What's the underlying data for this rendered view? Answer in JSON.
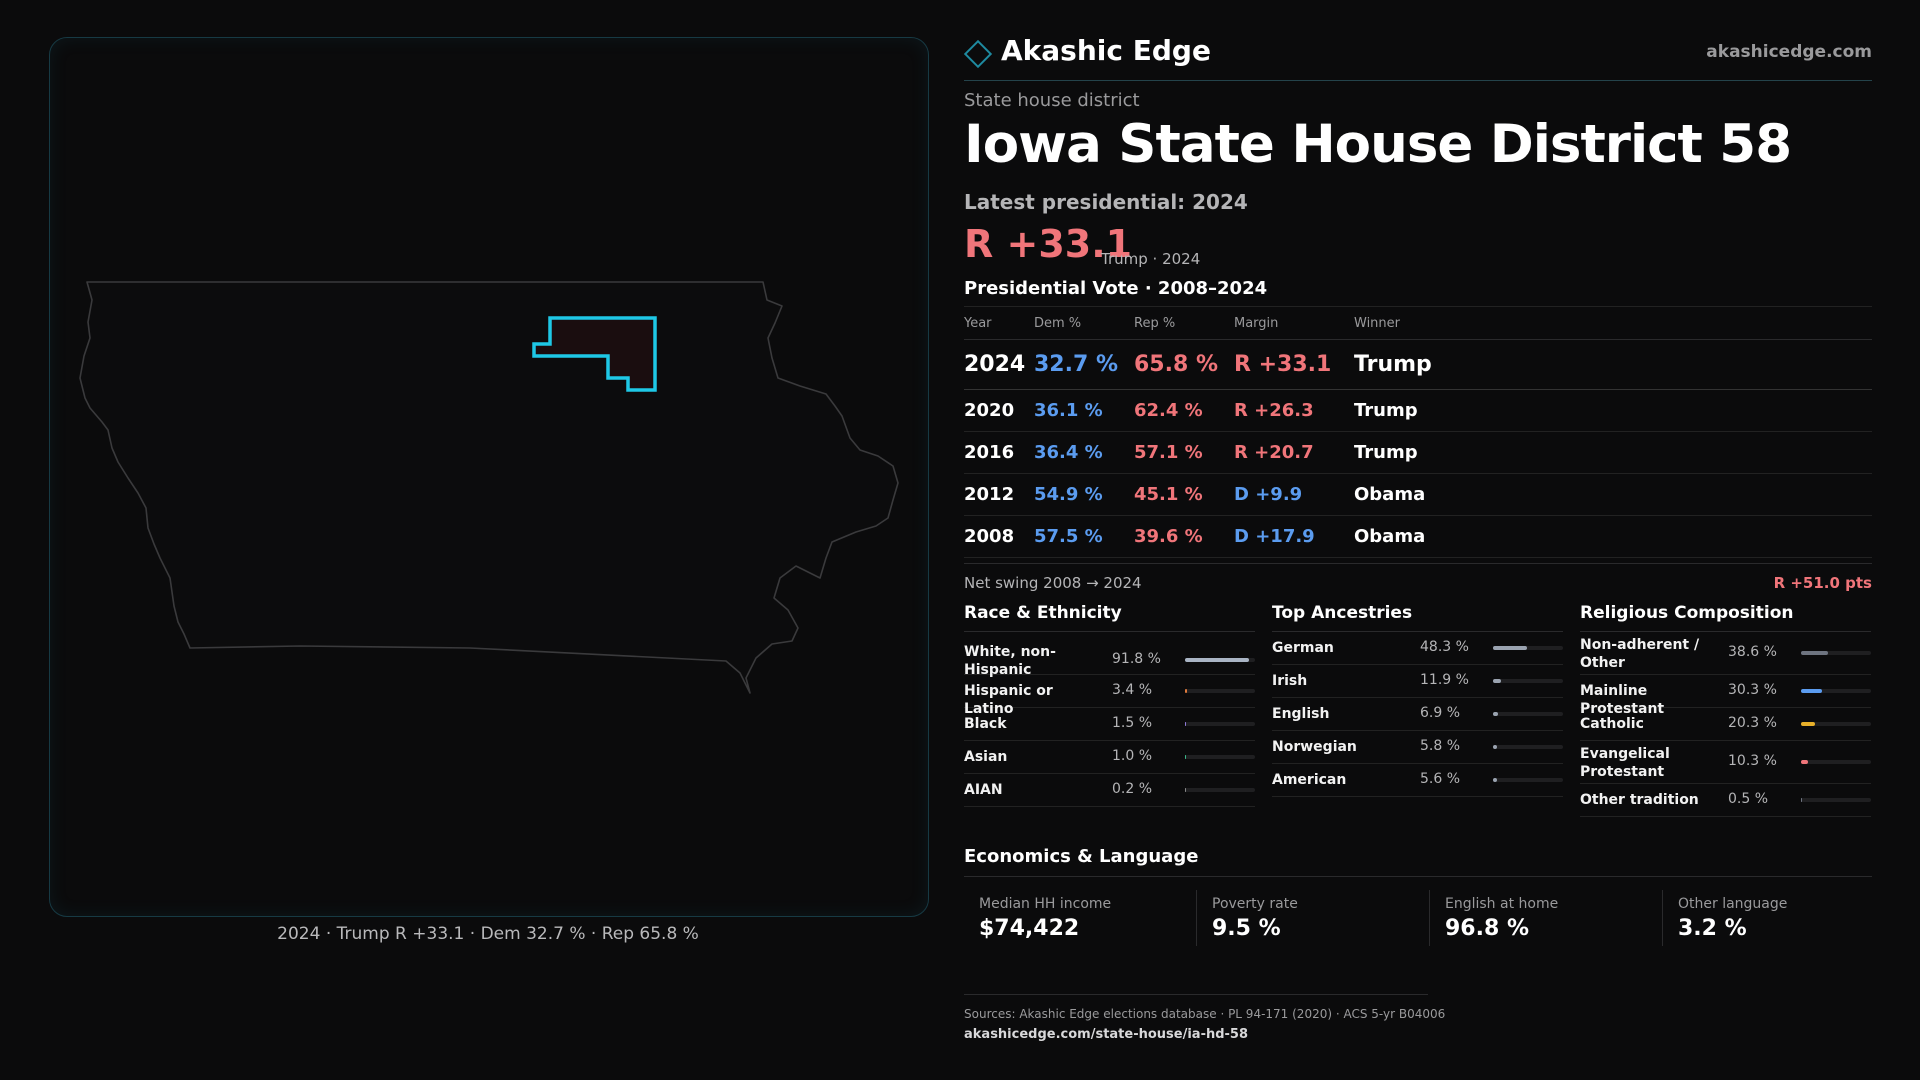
{
  "brand": {
    "name": "Akashic Edge",
    "site": "akashicedge.com"
  },
  "kicker": "State house district",
  "title": "Iowa State House District 58",
  "latest_label": "Latest presidential: 2024",
  "headline_margin": "R +33.1",
  "headline_note": "Trump · 2024",
  "map_caption": "2024 · Trump R +33.1 · Dem 32.7 % · Rep 65.8 %",
  "vote_table": {
    "title": "Presidential Vote · 2008–2024",
    "headers": [
      "Year",
      "Dem %",
      "Rep %",
      "Margin",
      "Winner"
    ],
    "rows": [
      {
        "year": "2024",
        "dem": "32.7 %",
        "rep": "65.8 %",
        "margin": "R +33.1",
        "party": "R",
        "winner": "Trump"
      },
      {
        "year": "2020",
        "dem": "36.1 %",
        "rep": "62.4 %",
        "margin": "R +26.3",
        "party": "R",
        "winner": "Trump"
      },
      {
        "year": "2016",
        "dem": "36.4 %",
        "rep": "57.1 %",
        "margin": "R +20.7",
        "party": "R",
        "winner": "Trump"
      },
      {
        "year": "2012",
        "dem": "54.9 %",
        "rep": "45.1 %",
        "margin": "D +9.9",
        "party": "D",
        "winner": "Obama"
      },
      {
        "year": "2008",
        "dem": "57.5 %",
        "rep": "39.6 %",
        "margin": "D +17.9",
        "party": "D",
        "winner": "Obama"
      }
    ]
  },
  "swing": {
    "label": "Net swing 2008 → 2024",
    "value": "R +51.0 pts"
  },
  "race": {
    "title": "Race & Ethnicity",
    "items": [
      {
        "label": "White, non-Hispanic",
        "pct": "91.8 %",
        "value": 91.8,
        "color": "#a9b4c4"
      },
      {
        "label": "Hispanic or Latino",
        "pct": "3.4 %",
        "value": 3.4,
        "color": "#e07a3c"
      },
      {
        "label": "Black",
        "pct": "1.5 %",
        "value": 1.5,
        "color": "#8f7ad8"
      },
      {
        "label": "Asian",
        "pct": "1.0 %",
        "value": 1.0,
        "color": "#3cb88a"
      },
      {
        "label": "AIAN",
        "pct": "0.2 %",
        "value": 0.2,
        "color": "#888888"
      }
    ]
  },
  "ancestry": {
    "title": "Top Ancestries",
    "items": [
      {
        "label": "German",
        "pct": "48.3 %",
        "value": 48.3,
        "color": "#9aa3b0"
      },
      {
        "label": "Irish",
        "pct": "11.9 %",
        "value": 11.9,
        "color": "#9aa3b0"
      },
      {
        "label": "English",
        "pct": "6.9 %",
        "value": 6.9,
        "color": "#9aa3b0"
      },
      {
        "label": "Norwegian",
        "pct": "5.8 %",
        "value": 5.8,
        "color": "#9aa3b0"
      },
      {
        "label": "American",
        "pct": "5.6 %",
        "value": 5.6,
        "color": "#9aa3b0"
      }
    ]
  },
  "religion": {
    "title": "Religious Composition",
    "items": [
      {
        "label": "Non-adherent / Other",
        "pct": "38.6 %",
        "value": 38.6,
        "color": "#6e7480"
      },
      {
        "label": "Mainline Protestant",
        "pct": "30.3 %",
        "value": 30.3,
        "color": "#5b9cf0"
      },
      {
        "label": "Catholic",
        "pct": "20.3 %",
        "value": 20.3,
        "color": "#e8b02a"
      },
      {
        "label": "Evangelical Protestant",
        "pct": "10.3 %",
        "value": 10.3,
        "color": "#f0757a"
      },
      {
        "label": "Other tradition",
        "pct": "0.5 %",
        "value": 0.5,
        "color": "#6e7480"
      }
    ]
  },
  "economics": {
    "title": "Economics & Language",
    "items": [
      {
        "label": "Median HH income",
        "value": "$74,422"
      },
      {
        "label": "Poverty rate",
        "value": "9.5 %"
      },
      {
        "label": "English at home",
        "value": "96.8 %"
      },
      {
        "label": "Other language",
        "value": "3.2 %"
      }
    ]
  },
  "footer": {
    "sources": "Sources: Akashic Edge elections database · PL 94-171 (2020) · ACS 5-yr B04006",
    "url": "akashicedge.com/state-house/ia-hd-58"
  },
  "colors": {
    "dem": "#5b9cf0",
    "rep": "#f0757a",
    "accent": "#1ec8e6"
  }
}
